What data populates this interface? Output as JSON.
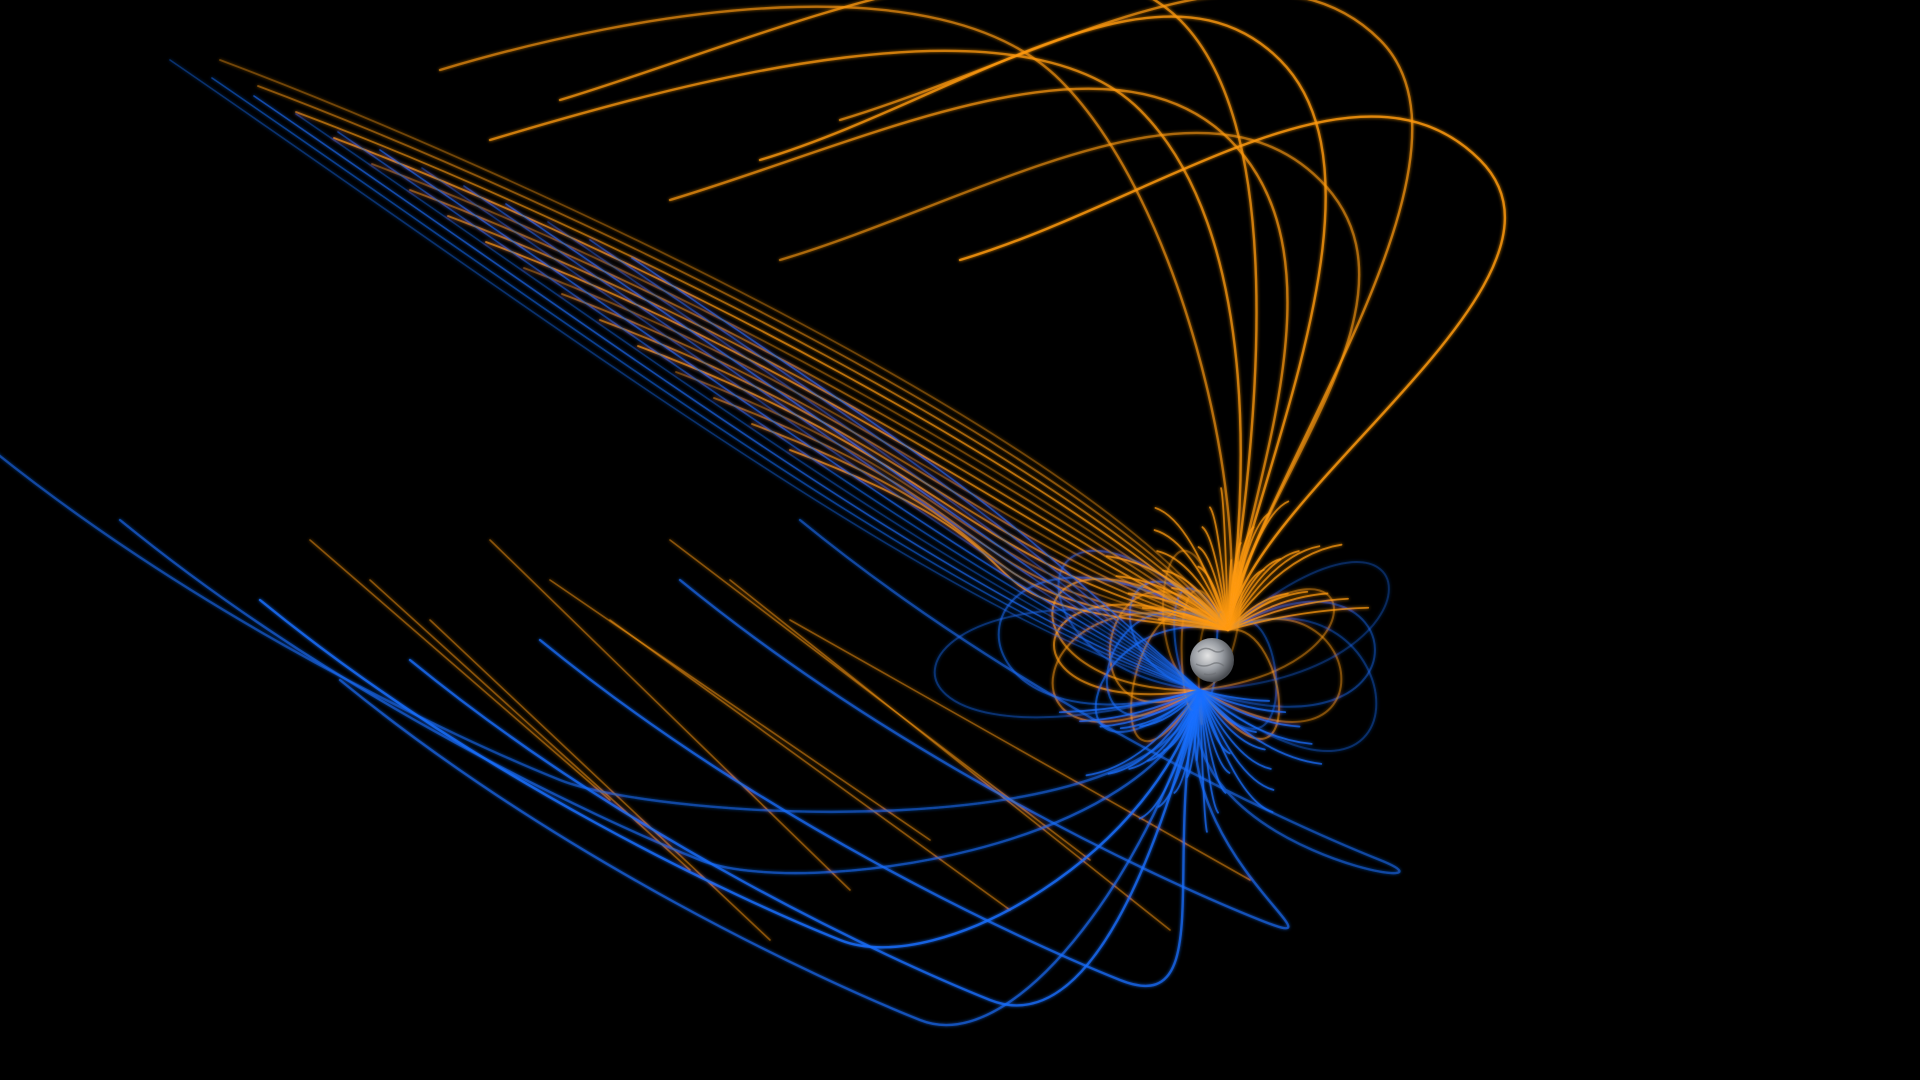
{
  "scene": {
    "subject": "magnetic-field-lines",
    "background_color": "#000000",
    "north_field_color": "#ff9a12",
    "south_field_color": "#1a6fff",
    "planet_color": "#b0b3b8",
    "icon_name": "planet-icon"
  }
}
